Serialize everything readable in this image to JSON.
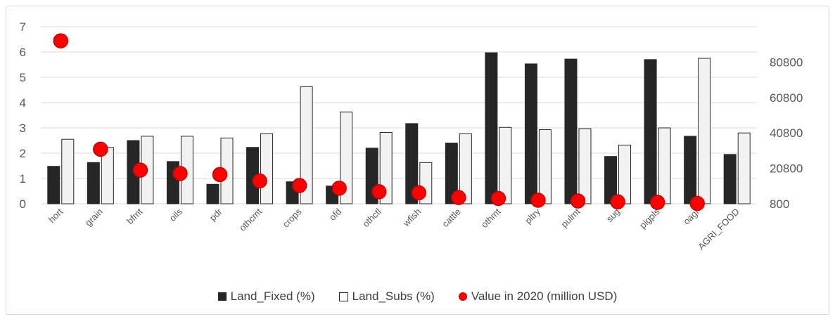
{
  "chart_data": {
    "type": "bar",
    "categories": [
      "hort",
      "grain",
      "bfmt",
      "oils",
      "pdr",
      "othcmt",
      "crops",
      "ofd",
      "othctl",
      "wfish",
      "cattle",
      "othmt",
      "pltry",
      "pulmt",
      "sug",
      "pigpls",
      "oagr",
      "AGRI_FOOD"
    ],
    "series": [
      {
        "name": "Land_Fixed (%)",
        "type": "bar",
        "axis": "left",
        "color": "#262626",
        "values": [
          1.48,
          1.63,
          2.5,
          1.67,
          0.77,
          2.23,
          0.87,
          0.7,
          2.2,
          3.17,
          2.4,
          5.97,
          5.53,
          5.72,
          1.87,
          5.7,
          2.67,
          1.95
        ]
      },
      {
        "name": "Land_Subs (%)",
        "type": "bar",
        "axis": "left",
        "color": "#f2f2f2",
        "values": [
          2.55,
          2.23,
          2.67,
          2.67,
          2.6,
          2.77,
          4.63,
          3.63,
          2.82,
          1.63,
          2.77,
          3.02,
          2.93,
          2.97,
          2.32,
          3.0,
          5.75,
          2.8
        ]
      },
      {
        "name": "Value in 2020 (million USD)",
        "type": "scatter",
        "axis": "right",
        "color": "#ff0000",
        "values": [
          92800,
          31600,
          19800,
          17900,
          17300,
          13700,
          11100,
          9600,
          7600,
          7000,
          4300,
          3800,
          2800,
          2400,
          1900,
          1600,
          1000,
          null
        ]
      }
    ],
    "left_axis": {
      "ticks": [
        "0",
        "1",
        "2",
        "3",
        "4",
        "5",
        "6",
        "7"
      ],
      "ylim": [
        0,
        7
      ]
    },
    "right_axis": {
      "ticks": [
        "800",
        "20800",
        "40800",
        "60800",
        "80800"
      ],
      "ylim": [
        800,
        100800
      ]
    },
    "grid": "horizontal",
    "legend": "bottom",
    "title": "",
    "xlabel": "",
    "ylabel": ""
  }
}
